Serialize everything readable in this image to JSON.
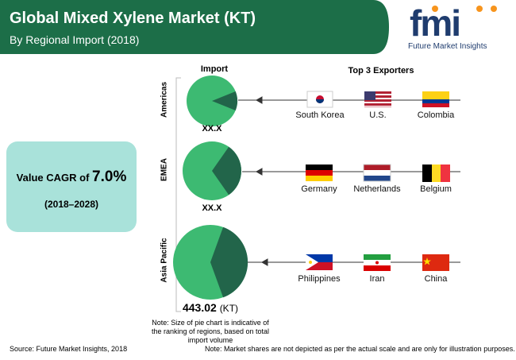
{
  "header": {
    "title": "Global Mixed Xylene Market (KT)",
    "subtitle": "By Regional Import (2018)"
  },
  "logo": {
    "mark": "fmi",
    "name": "Future Market Insights"
  },
  "cagr": {
    "prefix": "Value CAGR of",
    "value": "7.0%",
    "period": "(2018–2028)"
  },
  "columns": {
    "import": "Import",
    "exporters": "Top 3 Exporters"
  },
  "regions": [
    {
      "name": "Americas",
      "import": "XX.X",
      "exporters": [
        "South Korea",
        "U.S.",
        "Colombia"
      ]
    },
    {
      "name": "EMEA",
      "import": "XX.X",
      "exporters": [
        "Germany",
        "Netherlands",
        "Belgium"
      ]
    },
    {
      "name": "Asia Pacific",
      "import_value": "443.02",
      "import_unit": "(KT)",
      "exporters": [
        "Philippines",
        "Iran",
        "China"
      ]
    }
  ],
  "notes": {
    "pie": "Note: Size of pie chart is indicative of the ranking of regions, based on total import volume",
    "source": "Source: Future Market Insights, 2018",
    "disclaimer": "Note: Market shares are not depicted as per the actual scale and are only for illustration purposes."
  }
}
